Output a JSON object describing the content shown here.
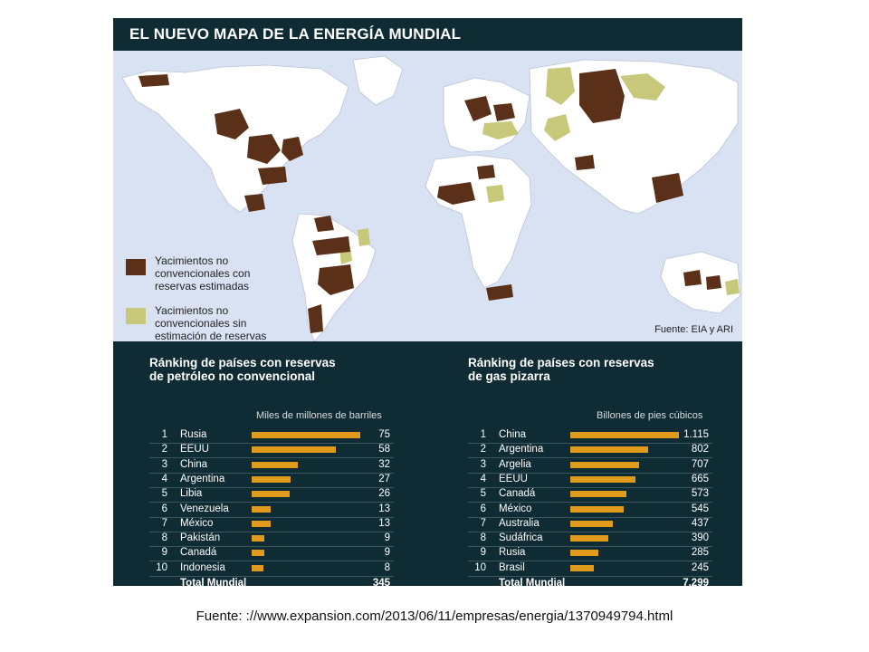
{
  "title": "EL NUEVO MAPA DE LA ENERGÍA MUNDIAL",
  "map": {
    "legend": [
      {
        "lines": [
          "Yacimientos no",
          "convencionales con",
          "reservas estimadas"
        ],
        "color": "#5a3018"
      },
      {
        "lines": [
          "Yacimientos no",
          "convencionales sin",
          "estimación de reservas"
        ],
        "color": "#c8c87a"
      }
    ],
    "source": "Fuente: EIA y ARI",
    "colors": {
      "ocean": "#d8e2f3",
      "land": "#ffffff",
      "estimated": "#5a3018",
      "unestimated": "#c8c87a"
    }
  },
  "chart_data": [
    {
      "type": "bar",
      "title": "Ránking de países con reservas de petróleo no convencional",
      "title_lines": [
        "Ránking de países con reservas",
        "de petróleo no convencional"
      ],
      "unit": "Miles de millones de barriles",
      "ranks": [
        "1",
        "2",
        "3",
        "4",
        "5",
        "6",
        "7",
        "8",
        "9",
        "10"
      ],
      "categories": [
        "Rusia",
        "EEUU",
        "China",
        "Argentina",
        "Libia",
        "Venezuela",
        "México",
        "Pakistán",
        "Canadá",
        "Indonesia"
      ],
      "values": [
        75,
        58,
        32,
        27,
        26,
        13,
        13,
        9,
        9,
        8
      ],
      "value_labels": [
        "75",
        "58",
        "32",
        "27",
        "26",
        "13",
        "13",
        "9",
        "9",
        "8"
      ],
      "total_label": "Total Mundial",
      "total_value": "345",
      "bar_color": "#e09b1d"
    },
    {
      "type": "bar",
      "title": "Ránking de países con reservas de gas pizarra",
      "title_lines": [
        "Ránking de países con reservas",
        "de gas pizarra"
      ],
      "unit": "Billones de pies cúbicos",
      "ranks": [
        "1",
        "2",
        "3",
        "4",
        "5",
        "6",
        "7",
        "8",
        "9",
        "10"
      ],
      "categories": [
        "China",
        "Argentina",
        "Argelia",
        "EEUU",
        "Canadá",
        "México",
        "Australia",
        "Sudáfrica",
        "Rusia",
        "Brasil"
      ],
      "values": [
        1115,
        802,
        707,
        665,
        573,
        545,
        437,
        390,
        285,
        245
      ],
      "value_labels": [
        "1.115",
        "802",
        "707",
        "665",
        "573",
        "545",
        "437",
        "390",
        "285",
        "245"
      ],
      "total_label": "Total Mundial",
      "total_value": "7.299",
      "bar_color": "#e09b1d"
    }
  ],
  "caption": "Fuente: ://www.expansion.com/2013/06/11/empresas/energia/1370949794.html"
}
